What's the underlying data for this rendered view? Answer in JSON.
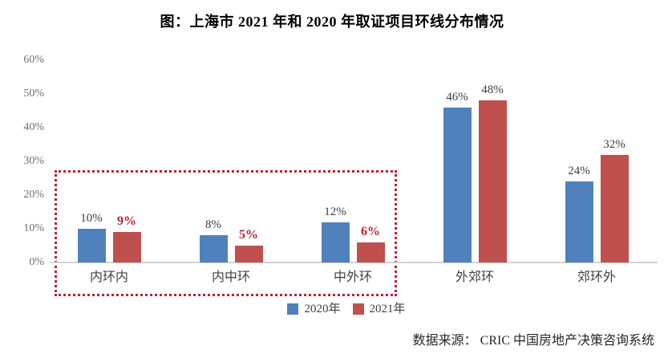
{
  "source": "数据来源： CRIC 中国房地产决策咨询系统",
  "colors": {
    "series_2020": "#4f81bd",
    "series_2021": "#c0504d",
    "highlight": "#c0202f",
    "axis_line": "#d2d2d2",
    "tick_text": "#6e6e6e",
    "value_text": "#3d3d3d",
    "title_text": "#000000"
  },
  "chart_data": {
    "type": "bar",
    "title": "图：上海市 2021 年和 2020 年取证项目环线分布情况",
    "categories": [
      "内环内",
      "内中环",
      "中外环",
      "外郊环",
      "郊环外"
    ],
    "series": [
      {
        "name": "2020年",
        "color": "#4f81bd",
        "values": [
          10,
          8,
          12,
          46,
          24
        ]
      },
      {
        "name": "2021年",
        "color": "#c0504d",
        "values": [
          9,
          5,
          6,
          48,
          32
        ]
      }
    ],
    "unit": "%",
    "ylim": [
      0,
      60
    ],
    "ytick_step": 10,
    "grid": false,
    "data_labels": true,
    "legend_position": "bottom-center",
    "highlight": {
      "type": "dashed-box",
      "categories": [
        "内环内",
        "内中环",
        "中外环"
      ],
      "series": "2021年",
      "label_color": "#c0202f",
      "box_color": "#c0202f"
    }
  }
}
